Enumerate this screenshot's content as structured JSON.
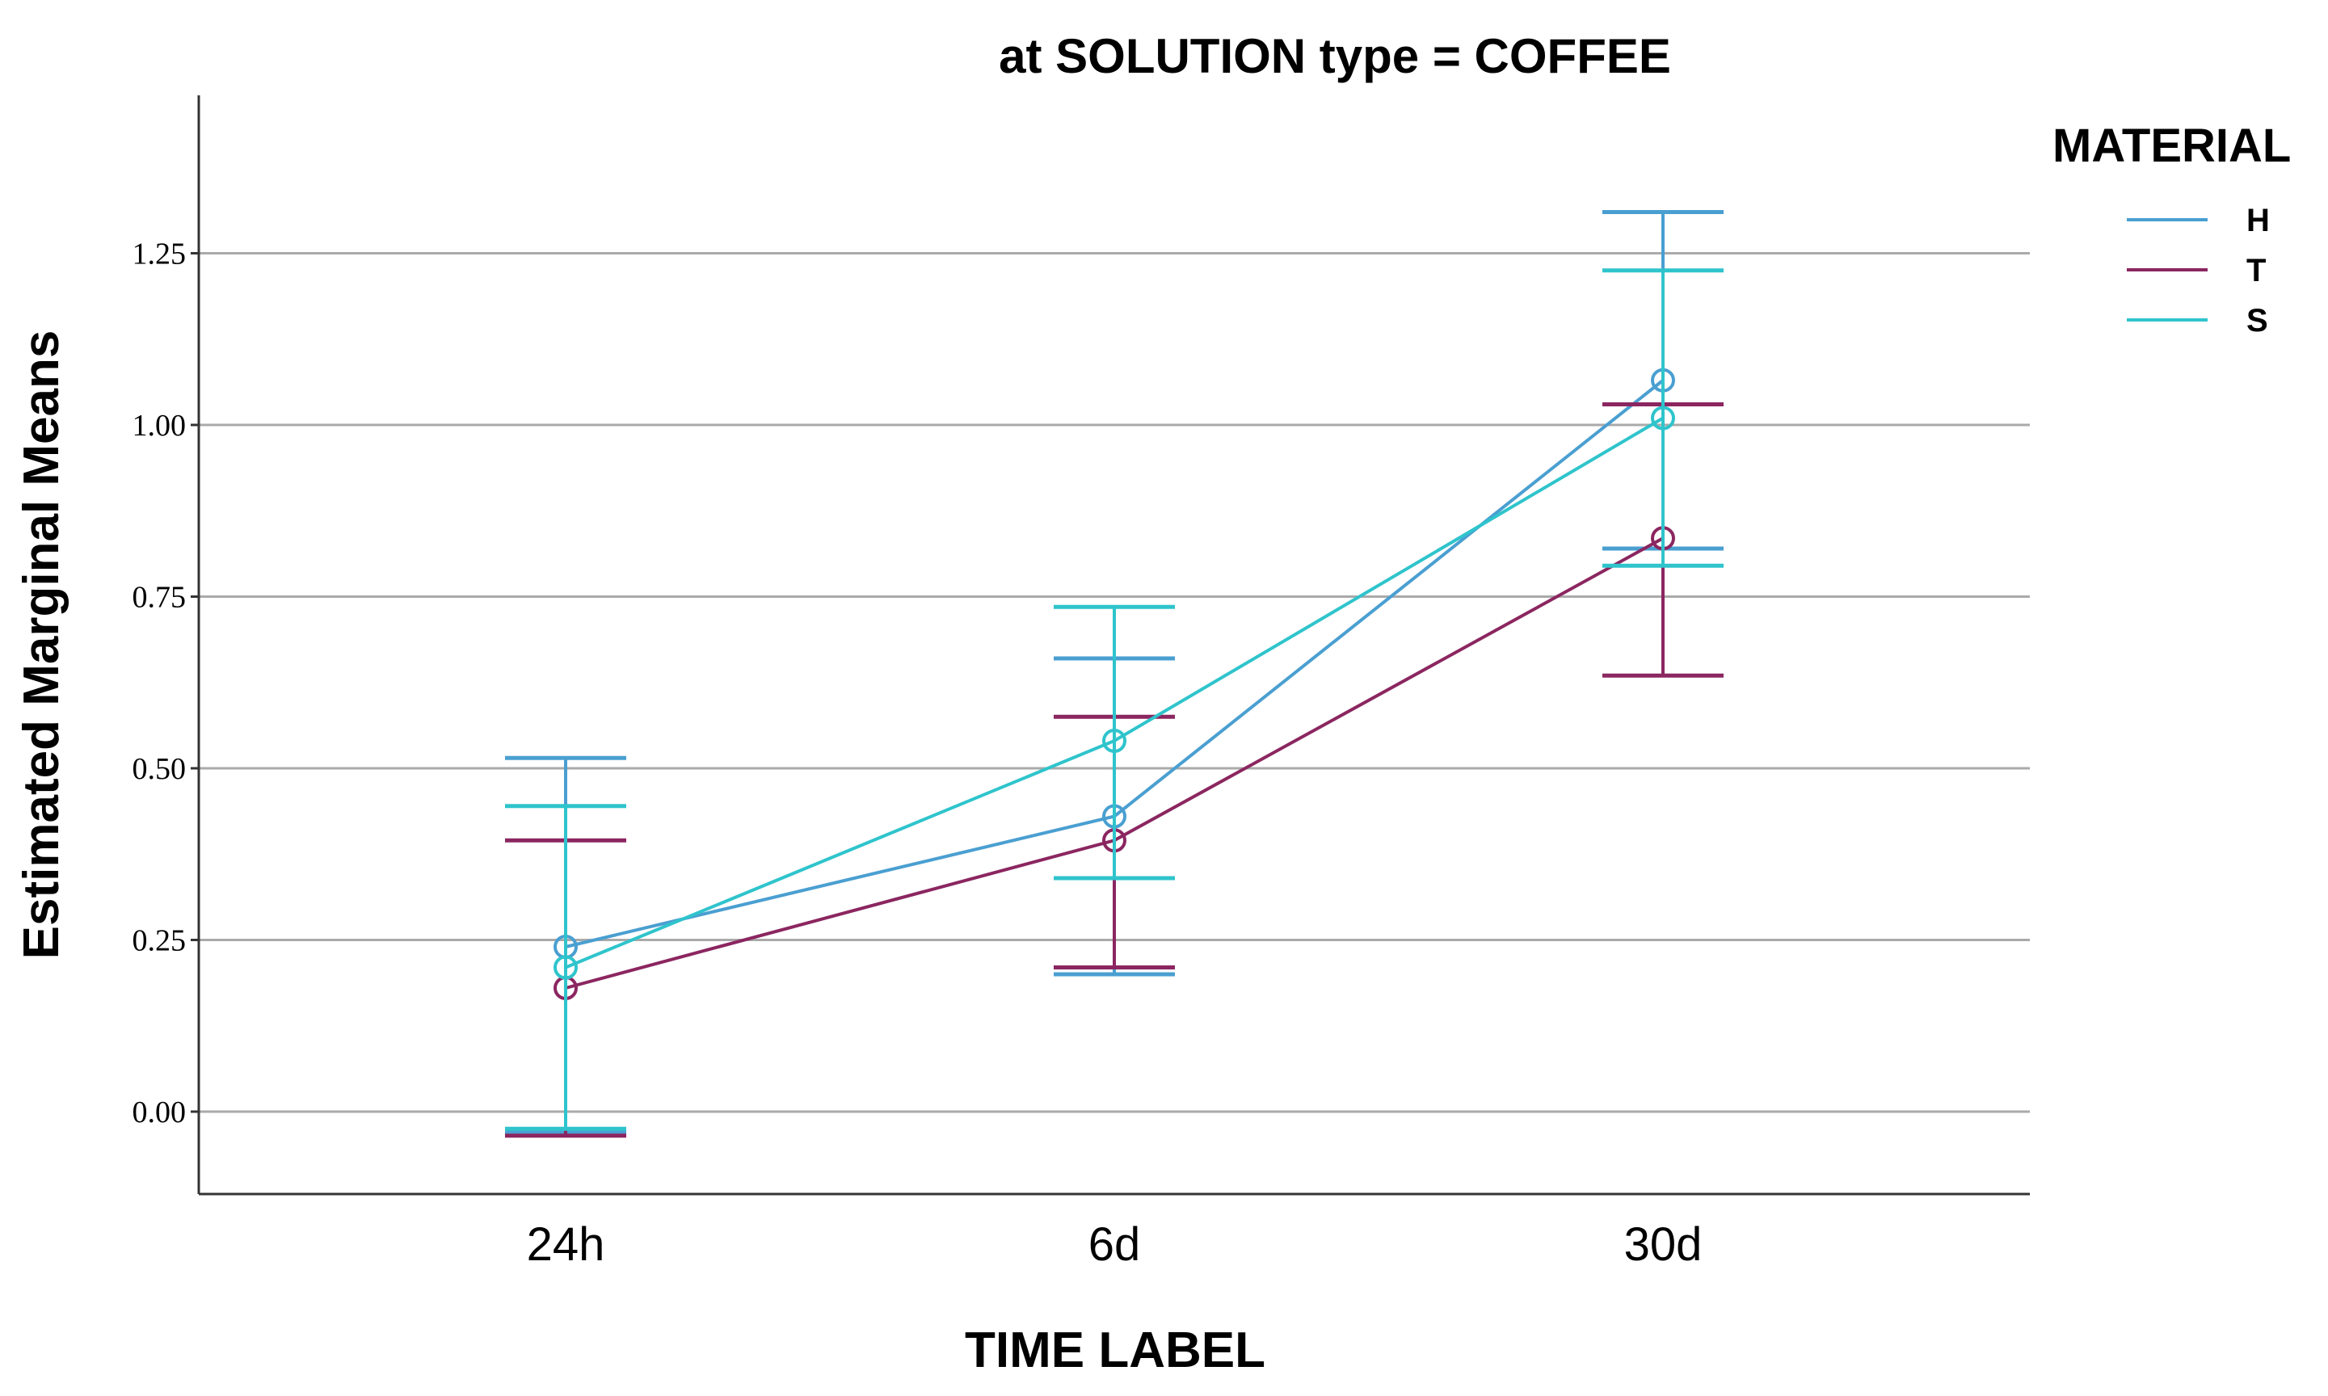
{
  "chart_data": {
    "type": "line",
    "title": "at SOLUTION type = COFFEE",
    "xlabel": "TIME LABEL",
    "ylabel": "Estimated Marginal Means",
    "categories": [
      "24h",
      "6d",
      "30d"
    ],
    "yticks": [
      "0.00",
      "0.25",
      "0.50",
      "0.75",
      "1.00",
      "1.25"
    ],
    "ylim": [
      -0.12,
      1.48
    ],
    "grid": true,
    "legend": {
      "title": "MATERIAL",
      "placement": "right"
    },
    "error_bars": true,
    "series": [
      {
        "name": "H",
        "color": "#4a9fd1",
        "values": [
          0.24,
          0.43,
          1.065
        ],
        "lower": [
          -0.03,
          0.2,
          0.82
        ],
        "upper": [
          0.515,
          0.66,
          1.31
        ]
      },
      {
        "name": "T",
        "color": "#8b2660",
        "values": [
          0.18,
          0.395,
          0.835
        ],
        "lower": [
          -0.035,
          0.21,
          0.635
        ],
        "upper": [
          0.395,
          0.575,
          1.03
        ]
      },
      {
        "name": "S",
        "color": "#2fc4cc",
        "values": [
          0.21,
          0.54,
          1.01
        ],
        "lower": [
          -0.025,
          0.34,
          0.795
        ],
        "upper": [
          0.445,
          0.735,
          1.225
        ]
      }
    ]
  }
}
